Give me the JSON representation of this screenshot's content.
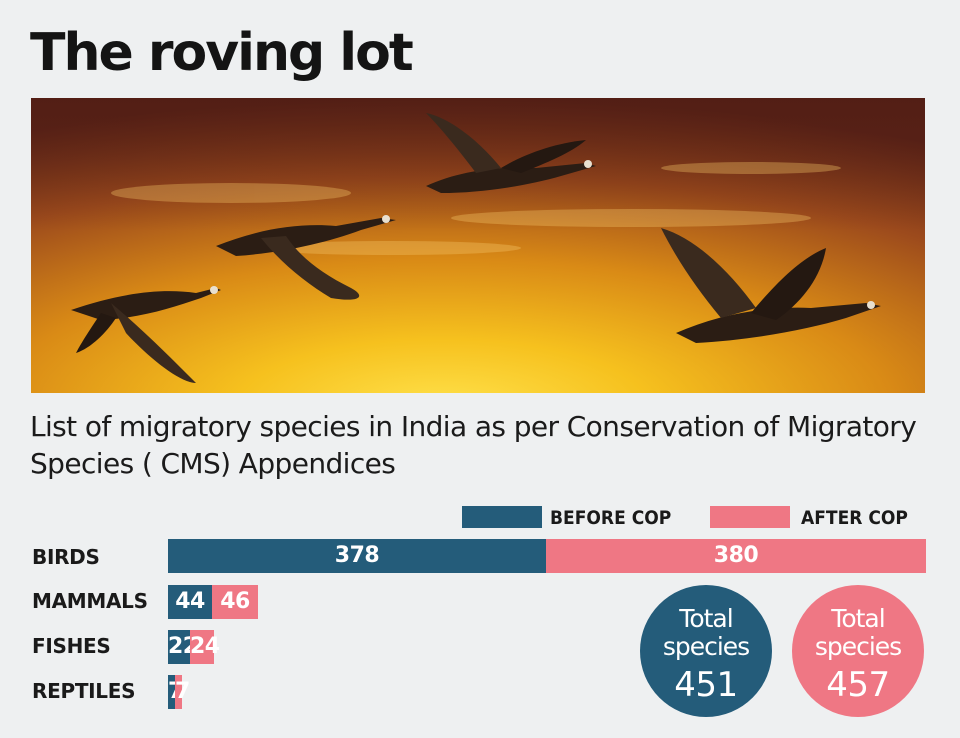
{
  "headline": "The roving lot",
  "subtitle": "List of migratory species in India as per Conservation of Migratory Species ( CMS) Appendices",
  "photo": {
    "subject": "geese-in-flight-at-sunset"
  },
  "colors": {
    "before": "#245c7a",
    "after": "#ef7784",
    "background": "#eef0f1"
  },
  "chart_data": {
    "type": "bar",
    "orientation": "horizontal",
    "stacked": true,
    "categories": [
      "BIRDS",
      "MAMMALS",
      "FISHES",
      "REPTILES"
    ],
    "series": [
      {
        "name": "BEFORE COP",
        "values": [
          378,
          44,
          22,
          7
        ]
      },
      {
        "name": "AFTER COP",
        "values": [
          380,
          46,
          24,
          7
        ]
      }
    ],
    "legend_position": "top-right",
    "grid": false,
    "totals": [
      {
        "title": "Total species",
        "value": 451
      },
      {
        "title": "Total species",
        "value": 457
      }
    ]
  }
}
